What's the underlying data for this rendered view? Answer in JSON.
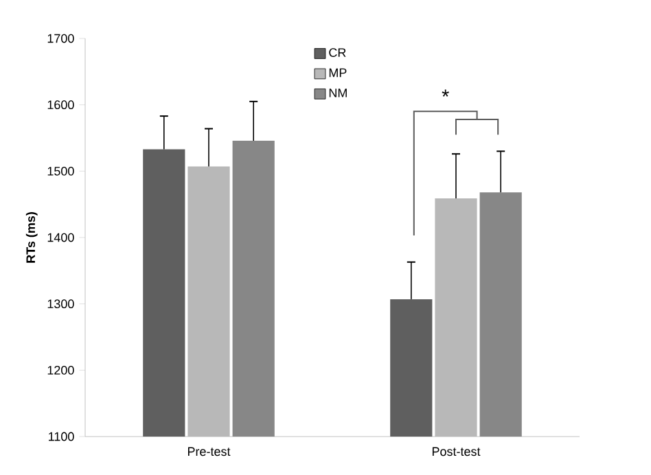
{
  "chart_data": {
    "type": "bar",
    "ylabel": "**RTs (ms)**",
    "categories": [
      "Pre-test",
      "Post-test"
    ],
    "series": [
      {
        "name": "CR",
        "color": "#5f5f5f",
        "values": [
          1533,
          1307
        ],
        "errors": [
          [
            1533,
            1583
          ],
          [
            1307,
            1363
          ]
        ]
      },
      {
        "name": "MP",
        "color": "#b8b8b8",
        "values": [
          1507,
          1459
        ],
        "errors": [
          [
            1507,
            1564
          ],
          [
            1459,
            1526
          ]
        ]
      },
      {
        "name": "NM",
        "color": "#878787",
        "values": [
          1546,
          1468
        ],
        "errors": [
          [
            1546,
            1605
          ],
          [
            1468,
            1530
          ]
        ]
      }
    ],
    "ylim": [
      1100,
      1700
    ],
    "yticks": [
      1100,
      1200,
      1300,
      1400,
      1500,
      1600,
      1700
    ],
    "grid": false,
    "legend": "top",
    "annotations": [
      "*"
    ]
  }
}
